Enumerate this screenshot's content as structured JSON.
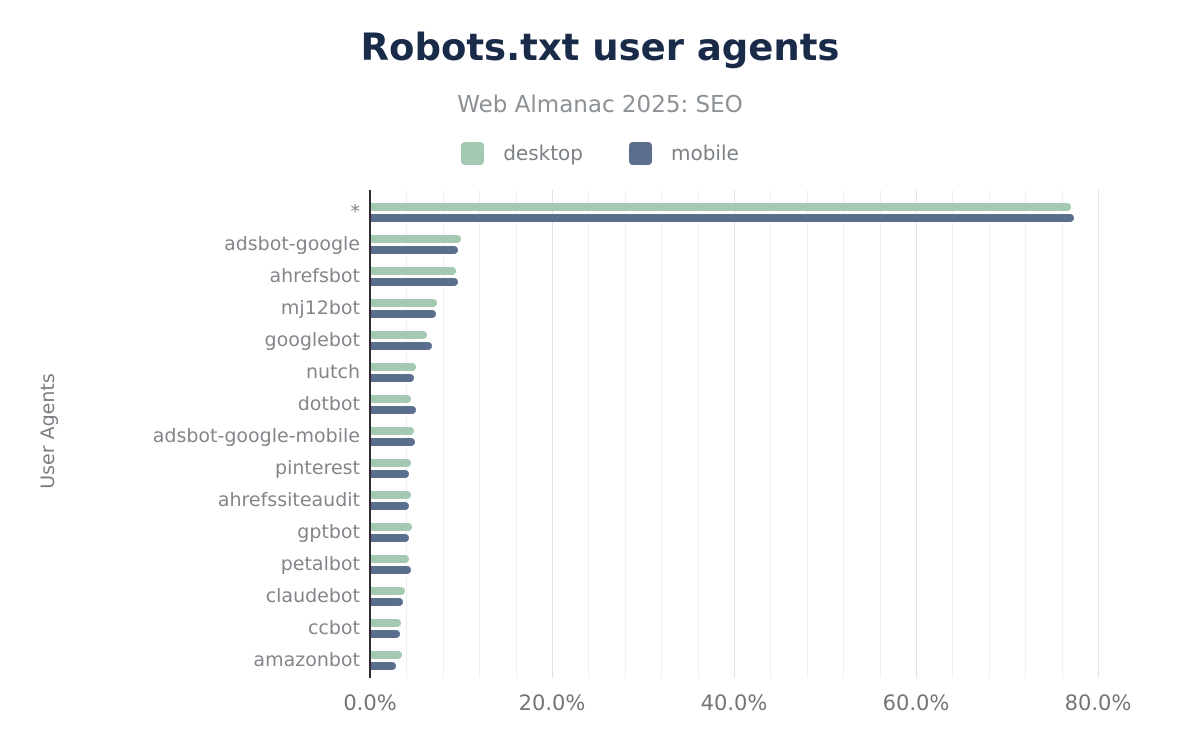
{
  "header": {
    "title": "Robots.txt user agents",
    "subtitle": "Web Almanac 2025: SEO"
  },
  "legend": [
    {
      "label": "desktop",
      "color": "#a3c9b2"
    },
    {
      "label": "mobile",
      "color": "#5b6e8e"
    }
  ],
  "colors": {
    "title": "#1a2b49",
    "subtitle_text": "#8c9196",
    "axis_line": "#2d2d2d",
    "label_text": "#82868a",
    "desktop_bar": "#a3c9b2",
    "mobile_bar": "#5b6e8e"
  },
  "chart_data": {
    "type": "bar",
    "orientation": "horizontal",
    "title": "Robots.txt user agents",
    "subtitle": "Web Almanac 2025: SEO",
    "xlabel": "",
    "ylabel": "User Agents",
    "xlim": [
      0,
      81
    ],
    "grid": "vertical, minor every 4%, major every 20%",
    "legend_position": "top",
    "x_tick_labels": [
      "0.0%",
      "20.0%",
      "40.0%",
      "60.0%",
      "80.0%"
    ],
    "x_tick_values": [
      0,
      20,
      40,
      60,
      80
    ],
    "categories": [
      "*",
      "adsbot-google",
      "ahrefsbot",
      "mj12bot",
      "googlebot",
      "nutch",
      "dotbot",
      "adsbot-google-mobile",
      "pinterest",
      "ahrefssiteaudit",
      "gptbot",
      "petalbot",
      "claudebot",
      "ccbot",
      "amazonbot"
    ],
    "series": [
      {
        "name": "desktop",
        "color": "#a3c9b2",
        "values": [
          77.0,
          10.0,
          9.5,
          7.4,
          6.3,
          5.0,
          4.5,
          4.8,
          4.5,
          4.5,
          4.6,
          4.3,
          3.8,
          3.4,
          3.5
        ]
      },
      {
        "name": "mobile",
        "color": "#5b6e8e",
        "values": [
          77.4,
          9.7,
          9.7,
          7.3,
          6.8,
          4.8,
          5.1,
          4.9,
          4.3,
          4.3,
          4.3,
          4.5,
          3.6,
          3.3,
          2.9
        ]
      }
    ],
    "unit": "%"
  }
}
